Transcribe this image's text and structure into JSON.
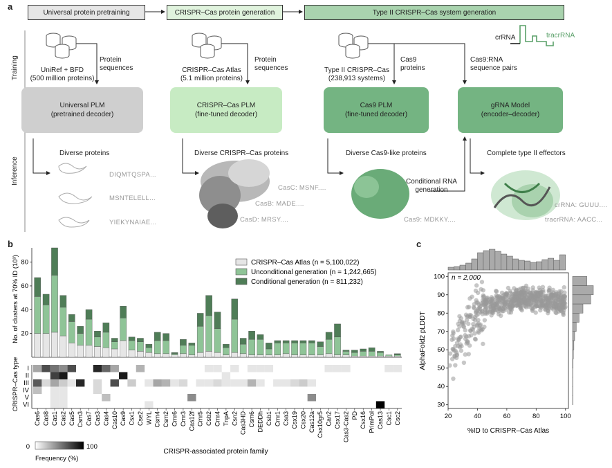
{
  "panel_a": {
    "letter": "a",
    "stages": [
      "Universal protein pretraining",
      "CRISPR–Cas protein generation",
      "Type II CRISPR–Cas system generation"
    ],
    "training_label": "Training",
    "inference_label": "Inference",
    "datasets": [
      {
        "name": "UniRef + BFD",
        "detail": "(500 million proteins)",
        "arrow_label_1": "Protein",
        "arrow_label_2": "sequences"
      },
      {
        "name": "CRISPR–Cas Atlas",
        "detail": "(5.1 million proteins)",
        "arrow_label_1": "Protein",
        "arrow_label_2": "sequences"
      },
      {
        "name": "Type II CRISPR–Cas",
        "detail": "(238,913 systems)",
        "arrow_label_1": "Cas9",
        "arrow_label_2": "proteins"
      },
      {
        "name": "",
        "detail": "",
        "arrow_label_1": "Cas9:RNA",
        "arrow_label_2": "sequence pairs"
      }
    ],
    "rna_legend": {
      "crrna": "crRNA",
      "tracrrna": "tracrRNA"
    },
    "models": [
      {
        "name": "Universal PLM",
        "sub": "(pretrained decoder)",
        "color": "#cfcfcf"
      },
      {
        "name": "CRISPR–Cas PLM",
        "sub": "(fine-tuned decoder)",
        "color": "#c7ebc3"
      },
      {
        "name": "Cas9 PLM",
        "sub": "(fine-tuned decoder)",
        "color": "#74b482"
      },
      {
        "name": "gRNA Model",
        "sub": "(encoder–decoder)",
        "color": "#74b482"
      }
    ],
    "outputs": [
      {
        "title": "Diverse proteins",
        "seqs": [
          "DIQMTQSPA...",
          "MSNTELELL...",
          "YIEKYNAIAE..."
        ]
      },
      {
        "title": "Diverse CRISPR–Cas proteins",
        "seqs": [
          "CasC: MSNF....",
          "CasB: MADE....",
          "CasD: MRSY...."
        ]
      },
      {
        "title": "Diverse Cas9-like proteins",
        "seqs": [
          "Cas9: MDKKY...."
        ]
      },
      {
        "title": "Complete type II effectors",
        "seqs": [
          "crRNA: GUUU....",
          "tracrRNA: AACC..."
        ]
      }
    ],
    "conditional_label_1": "Conditional RNA",
    "conditional_label_2": "generation"
  },
  "panel_b": {
    "letter": "b",
    "ylabel": "No. of clusters at 70% ID (10³)",
    "legend": [
      {
        "label": "CRISPR–Cas Atlas (n = 5,100,022)",
        "color": "#e6e6e6"
      },
      {
        "label": "Unconditional generation (n = 1,242,665)",
        "color": "#8fc497"
      },
      {
        "label": "Conditional generation (n = 811,232)",
        "color": "#4f7d57"
      }
    ],
    "heat_ylabel": "CRISPR–Cas type",
    "heat_rows": [
      "I",
      "II",
      "III",
      "IV",
      "V",
      "VI"
    ],
    "xlabel": "CRISPR-associated protein family",
    "colorbar": {
      "min": "0",
      "max": "100",
      "label": "Frequency (%)"
    }
  },
  "panel_c": {
    "letter": "c",
    "annotation": "n = 2,000",
    "xlabel": "%ID to CRISPR–Cas Atlas",
    "ylabel": "AlphaFold2 pLDDT"
  },
  "chart_data": [
    {
      "type": "bar",
      "stacked": true,
      "categories": [
        "Cas6",
        "Cas8",
        "Cas1",
        "Cas2",
        "Cas5",
        "Csm3",
        "Cas7",
        "Cas3",
        "Cas4",
        "Cas10",
        "Cas9",
        "Csx1",
        "Cse2",
        "WYL",
        "Csm4",
        "Csm2",
        "Cmr6",
        "Cmr3",
        "Cas12f",
        "Cmr5",
        "Csb2",
        "Cmr4",
        "TnpA",
        "Csn2",
        "Cas3HD",
        "Csm6",
        "DEDDh",
        "Csb1",
        "Cmr1",
        "Csa3",
        "Csx19",
        "Csx20",
        "Cas12a",
        "Csx10gr5",
        "Can2",
        "Csx17",
        "Cas3-Cas2",
        "PD",
        "Csx16",
        "PrimPol",
        "Cas13",
        "Csc1",
        "Csc2"
      ],
      "series": [
        {
          "name": "CRISPR–Cas Atlas",
          "values": [
            20,
            20,
            21,
            18,
            12,
            10,
            10,
            9,
            8,
            7,
            14,
            6,
            5,
            4,
            3,
            3,
            2,
            3,
            2,
            4,
            5,
            4,
            2,
            4,
            3,
            2,
            2,
            2,
            2,
            3,
            2,
            2,
            2,
            2,
            3,
            2,
            2,
            1,
            1,
            1,
            1,
            1,
            1
          ]
        },
        {
          "name": "Unconditional generation",
          "values": [
            31,
            24,
            48,
            24,
            18,
            10,
            22,
            8,
            13,
            6,
            19,
            8,
            8,
            4,
            11,
            11,
            1,
            7,
            8,
            22,
            30,
            20,
            6,
            28,
            8,
            13,
            13,
            5,
            10,
            9,
            10,
            10,
            10,
            7,
            12,
            15,
            3,
            3,
            4,
            4,
            3,
            1,
            1
          ]
        },
        {
          "name": "Conditional generation",
          "values": [
            16,
            9,
            23,
            10,
            6,
            6,
            8,
            5,
            8,
            3,
            10,
            3,
            3,
            3,
            7,
            6,
            1,
            5,
            2,
            11,
            17,
            14,
            3,
            17,
            5,
            7,
            4,
            5,
            2,
            2,
            2,
            2,
            2,
            4,
            6,
            11,
            1,
            2,
            2,
            3,
            1,
            0,
            1
          ]
        }
      ],
      "ylim": [
        0,
        92
      ],
      "yticks": [
        20,
        40,
        60,
        80
      ]
    },
    {
      "type": "heatmap",
      "rows": [
        "I",
        "II",
        "III",
        "IV",
        "V",
        "VI"
      ],
      "columns": [
        "Cas6",
        "Cas8",
        "Cas1",
        "Cas2",
        "Cas5",
        "Csm3",
        "Cas7",
        "Cas3",
        "Cas4",
        "Cas10",
        "Cas9",
        "Csx1",
        "Cse2",
        "WYL",
        "Csm4",
        "Csm2",
        "Cmr6",
        "Cmr3",
        "Cas12f",
        "Cmr5",
        "Csb2",
        "Cmr4",
        "TnpA",
        "Csn2",
        "Cas3HD",
        "Csm6",
        "DEDDh",
        "Csb1",
        "Cmr1",
        "Csa3",
        "Csx19",
        "Csx20",
        "Cas12a",
        "Csx10gr5",
        "Can2",
        "Csx17",
        "Cas3-Cas2",
        "PD",
        "Csx16",
        "PrimPol",
        "Cas13",
        "Csc1",
        "Csc2"
      ],
      "values": [
        [
          35,
          70,
          55,
          45,
          70,
          0,
          0,
          85,
          60,
          35,
          0,
          0,
          30,
          0,
          0,
          0,
          0,
          0,
          0,
          0,
          10,
          10,
          0,
          10,
          0,
          10,
          10,
          10,
          0,
          0,
          0,
          0,
          0,
          0,
          10,
          10,
          10,
          0,
          0,
          0,
          0,
          10,
          10
        ],
        [
          0,
          0,
          75,
          90,
          0,
          0,
          0,
          0,
          0,
          0,
          90,
          0,
          0,
          0,
          0,
          0,
          0,
          0,
          0,
          0,
          0,
          0,
          10,
          0,
          0,
          0,
          0,
          0,
          0,
          0,
          0,
          0,
          0,
          0,
          0,
          0,
          0,
          0,
          0,
          0,
          0,
          0,
          0
        ],
        [
          65,
          15,
          35,
          20,
          10,
          85,
          0,
          15,
          0,
          70,
          0,
          20,
          0,
          10,
          35,
          30,
          10,
          15,
          0,
          10,
          10,
          15,
          10,
          10,
          10,
          30,
          10,
          0,
          10,
          10,
          15,
          20,
          10,
          0,
          0,
          0,
          0,
          0,
          0,
          0,
          0,
          0,
          0
        ],
        [
          25,
          0,
          10,
          10,
          0,
          0,
          0,
          15,
          0,
          0,
          0,
          0,
          0,
          0,
          0,
          0,
          0,
          0,
          0,
          0,
          0,
          0,
          0,
          0,
          0,
          0,
          0,
          0,
          0,
          0,
          0,
          0,
          0,
          0,
          0,
          0,
          0,
          0,
          0,
          0,
          0,
          0,
          0
        ],
        [
          0,
          0,
          10,
          10,
          0,
          0,
          0,
          0,
          25,
          0,
          0,
          0,
          0,
          0,
          0,
          0,
          0,
          0,
          45,
          0,
          0,
          0,
          0,
          0,
          0,
          0,
          0,
          0,
          0,
          0,
          0,
          0,
          45,
          0,
          0,
          0,
          0,
          0,
          0,
          0,
          0,
          0,
          0
        ],
        [
          0,
          0,
          10,
          10,
          0,
          0,
          0,
          0,
          0,
          0,
          0,
          0,
          0,
          10,
          0,
          0,
          0,
          0,
          0,
          0,
          0,
          0,
          0,
          0,
          0,
          0,
          0,
          0,
          0,
          0,
          0,
          0,
          0,
          0,
          0,
          0,
          0,
          0,
          0,
          0,
          100,
          0,
          0
        ]
      ],
      "colorbar": [
        0,
        100
      ]
    },
    {
      "type": "scatter",
      "xlim": [
        20,
        102
      ],
      "ylim": [
        28,
        102
      ],
      "xticks": [
        20,
        40,
        60,
        80,
        100
      ],
      "yticks": [
        30,
        40,
        50,
        60,
        70,
        80,
        90,
        100
      ],
      "n": 2000,
      "trend": {
        "x": [
          20,
          25,
          30,
          35,
          40,
          45,
          50,
          60,
          70,
          80,
          90,
          100
        ],
        "y": [
          58,
          63,
          69,
          75,
          80,
          83,
          85,
          87,
          88,
          88,
          87,
          86
        ]
      },
      "top_hist": {
        "bins": [
          20,
          24,
          28,
          32,
          36,
          40,
          44,
          48,
          52,
          56,
          60,
          64,
          68,
          72,
          76,
          80,
          84,
          88,
          92,
          96,
          100
        ],
        "counts": [
          4,
          5,
          7,
          10,
          16,
          25,
          28,
          30,
          27,
          23,
          20,
          16,
          14,
          13,
          11,
          12,
          15,
          17,
          14,
          22
        ]
      },
      "right_hist": {
        "bins": [
          30,
          35,
          40,
          45,
          50,
          55,
          60,
          65,
          70,
          75,
          80,
          85,
          90,
          95,
          100
        ],
        "counts": [
          1,
          1,
          1,
          1,
          2,
          3,
          5,
          8,
          14,
          25,
          40,
          70,
          80,
          55
        ]
      }
    }
  ]
}
